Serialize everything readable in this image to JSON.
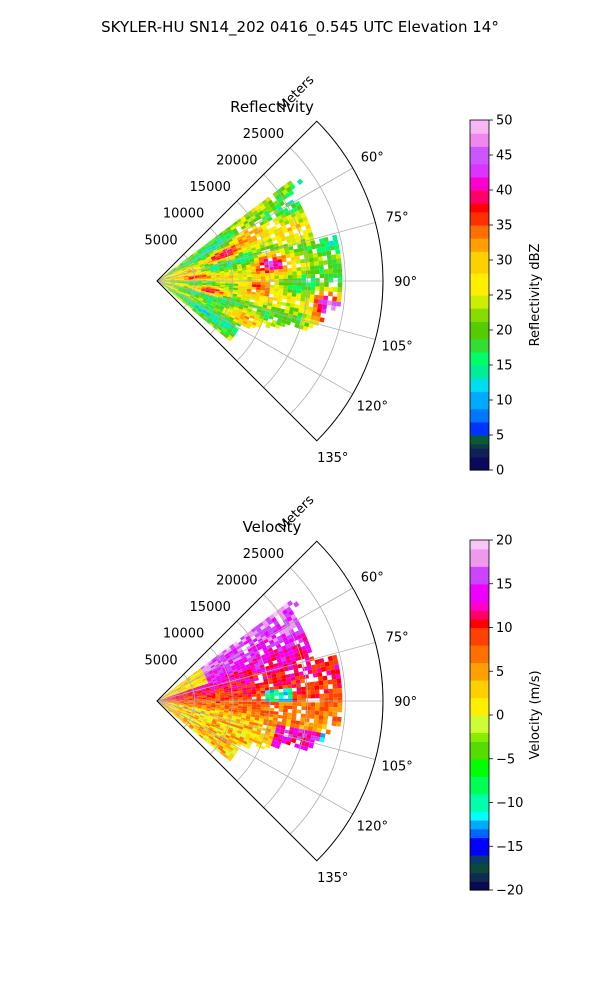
{
  "figure": {
    "suptitle": "SKYLER-HU  SN14_202  0416_0.545 UTC Elevation 14°"
  },
  "chart_data": [
    {
      "type": "heatmap",
      "title": "Reflectivity",
      "range_label": "Meters",
      "range_ticks": [
        "5000",
        "10000",
        "15000",
        "20000",
        "25000"
      ],
      "range_tick_values": [
        5000,
        10000,
        15000,
        20000,
        25000
      ],
      "range_max": 30000,
      "azimuth_ticks": [
        "60°",
        "75°",
        "90°",
        "105°",
        "120°",
        "135°"
      ],
      "azimuth_tick_values": [
        60,
        75,
        90,
        105,
        120,
        135
      ],
      "azimuth_range": [
        45,
        135
      ],
      "grid": true,
      "colorbar": {
        "label": "Reflectivity dBZ",
        "ticks": [
          "0",
          "5",
          "10",
          "15",
          "20",
          "25",
          "30",
          "35",
          "40",
          "45",
          "50"
        ],
        "tick_values": [
          0,
          5,
          10,
          15,
          20,
          25,
          30,
          35,
          40,
          45,
          50
        ],
        "vmin": 0,
        "vmax": 50
      }
    },
    {
      "type": "heatmap",
      "title": "Velocity",
      "range_label": "Meters",
      "range_ticks": [
        "5000",
        "10000",
        "15000",
        "20000",
        "25000"
      ],
      "range_tick_values": [
        5000,
        10000,
        15000,
        20000,
        25000
      ],
      "range_max": 30000,
      "azimuth_ticks": [
        "60°",
        "75°",
        "90°",
        "105°",
        "120°",
        "135°"
      ],
      "azimuth_tick_values": [
        60,
        75,
        90,
        105,
        120,
        135
      ],
      "azimuth_range": [
        45,
        135
      ],
      "grid": true,
      "colorbar": {
        "label": "Velocity (m/s)",
        "ticks": [
          "−20",
          "−15",
          "−10",
          "−5",
          "0",
          "5",
          "10",
          "15",
          "20"
        ],
        "tick_values": [
          -20,
          -15,
          -10,
          -5,
          0,
          5,
          10,
          15,
          20
        ],
        "vmin": -20,
        "vmax": 20
      }
    }
  ]
}
